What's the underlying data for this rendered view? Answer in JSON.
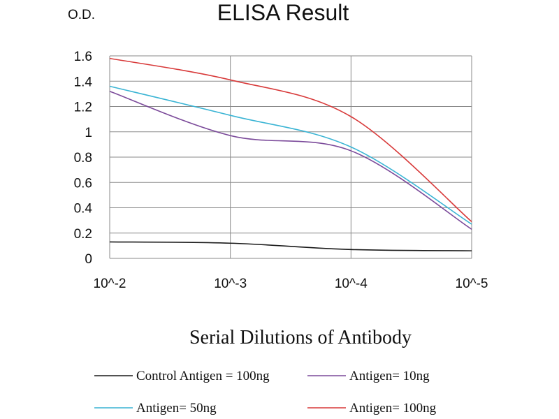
{
  "chart_data": {
    "type": "line",
    "title": "ELISA Result",
    "ylabel": "O.D.",
    "xlabel": "Serial Dilutions of Antibody",
    "categories": [
      "10^-2",
      "10^-3",
      "10^-4",
      "10^-5"
    ],
    "ylim": [
      0,
      1.6
    ],
    "yticks": [
      "0",
      "0.2",
      "0.4",
      "0.6",
      "0.8",
      "1",
      "1.2",
      "1.4",
      "1.6"
    ],
    "grid": true,
    "legend_position": "bottom",
    "series": [
      {
        "name": "Control Antigen = 100ng",
        "color": "#1a1a1a",
        "values": [
          0.13,
          0.12,
          0.07,
          0.06
        ]
      },
      {
        "name": "Antigen= 10ng",
        "color": "#7b4a9a",
        "values": [
          1.32,
          0.97,
          0.85,
          0.23
        ]
      },
      {
        "name": "Antigen= 50ng",
        "color": "#3ab4d4",
        "values": [
          1.36,
          1.13,
          0.88,
          0.27
        ]
      },
      {
        "name": "Antigen= 100ng",
        "color": "#d83a3a",
        "values": [
          1.58,
          1.41,
          1.12,
          0.29
        ]
      }
    ]
  }
}
